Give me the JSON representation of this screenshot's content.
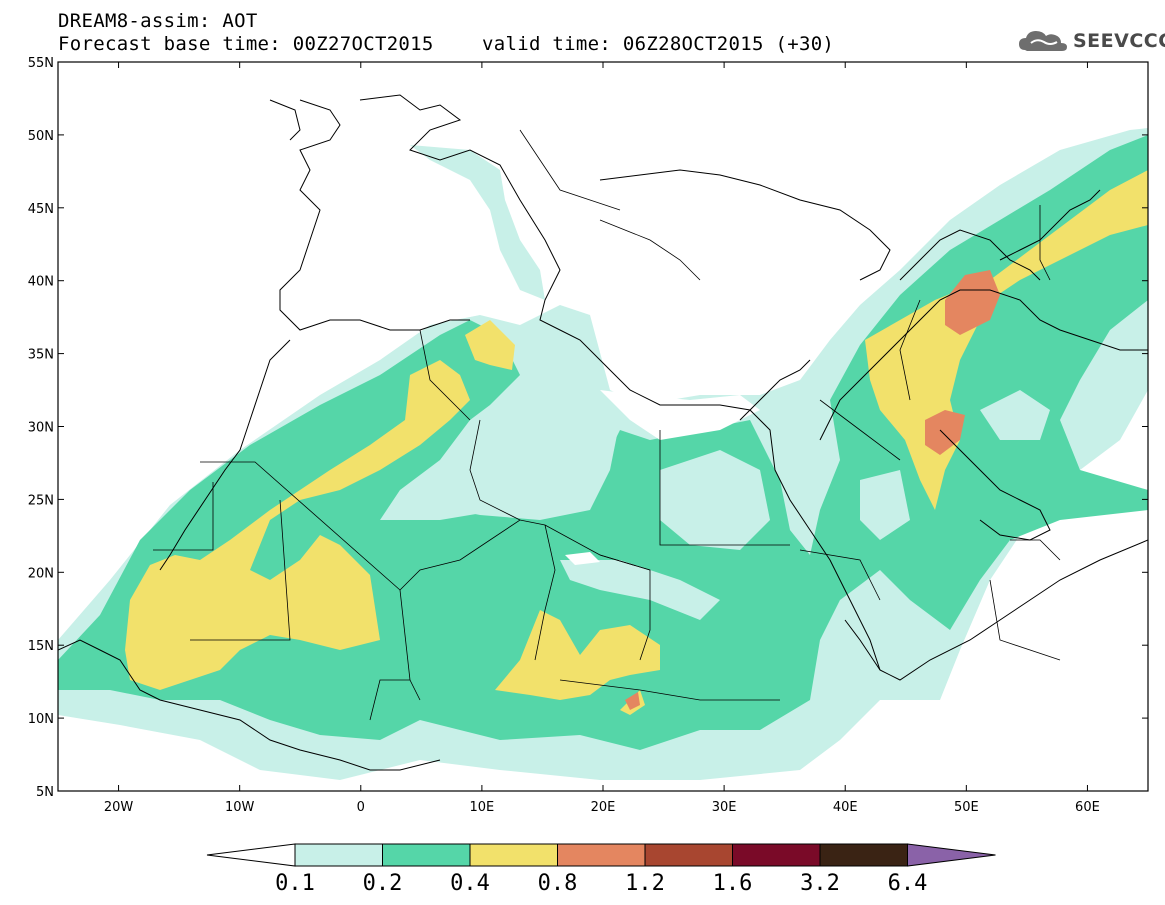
{
  "header": {
    "line1": "DREAM8-assim: AOT",
    "line2": "Forecast base time: 00Z27OCT2015",
    "valid": "valid time: 06Z28OCT2015 (+30)"
  },
  "logo": {
    "text": "SEEVCCC",
    "icon": "cloud-icon"
  },
  "map": {
    "lat_range": [
      5,
      55
    ],
    "lon_range": [
      -25,
      65
    ],
    "lat_ticks": [
      "55N",
      "50N",
      "45N",
      "40N",
      "35N",
      "30N",
      "25N",
      "20N",
      "15N",
      "10N",
      "5N"
    ],
    "lon_ticks": [
      "20W",
      "10W",
      "0",
      "10E",
      "20E",
      "30E",
      "40E",
      "50E",
      "60E"
    ]
  },
  "colorbar": {
    "labels": [
      "0.1",
      "0.2",
      "0.4",
      "0.8",
      "1.2",
      "1.6",
      "3.2",
      "6.4"
    ],
    "colors": [
      "#ffffff",
      "#c8f0e8",
      "#55d6a8",
      "#f2e16b",
      "#e48660",
      "#a84630",
      "#7a0a28",
      "#3a2314",
      "#8a62a8"
    ]
  }
}
